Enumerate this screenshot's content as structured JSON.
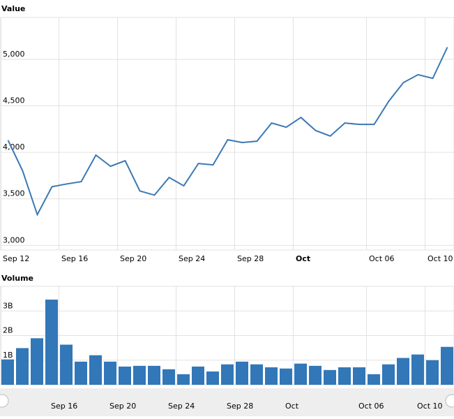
{
  "chart_data": [
    {
      "type": "line",
      "title": "Value",
      "color": "#3a78b5",
      "grid": true,
      "categories": [
        "Sep 12",
        null,
        null,
        null,
        "Sep 16",
        null,
        null,
        null,
        "Sep 20",
        null,
        null,
        null,
        "Sep 24",
        null,
        null,
        null,
        "Sep 28",
        null,
        null,
        null,
        "Oct",
        null,
        null,
        null,
        null,
        "Oct 06",
        null,
        null,
        null,
        "Oct 10",
        null
      ],
      "values": [
        4130,
        3800,
        3330,
        3630,
        3660,
        3685,
        3970,
        3850,
        3910,
        3585,
        3540,
        3730,
        3640,
        3880,
        3865,
        4135,
        4105,
        4120,
        4315,
        4270,
        4375,
        4235,
        4175,
        4315,
        4300,
        4300,
        4550,
        4750,
        4835,
        4795,
        5130
      ],
      "ylim": [
        2950,
        5450
      ],
      "yticks": [
        {
          "value": 3000,
          "label": "3,000"
        },
        {
          "value": 3500,
          "label": "3,500"
        },
        {
          "value": 4000,
          "label": "4,000"
        },
        {
          "value": 4500,
          "label": "4,500"
        },
        {
          "value": 5000,
          "label": "5,000"
        }
      ]
    },
    {
      "type": "bar",
      "title": "Volume",
      "color": "#3277b8",
      "grid": true,
      "values": [
        1030000000,
        1490000000,
        1890000000,
        3460000000,
        1630000000,
        940000000,
        1200000000,
        940000000,
        740000000,
        770000000,
        770000000,
        630000000,
        430000000,
        740000000,
        540000000,
        830000000,
        940000000,
        830000000,
        710000000,
        660000000,
        860000000,
        770000000,
        600000000,
        710000000,
        710000000,
        430000000,
        830000000,
        1090000000,
        1230000000,
        1000000000,
        1540000000
      ],
      "ylim": [
        0,
        4000000000
      ],
      "yticks": [
        0,
        {
          "value": 1000000000,
          "label": "1B"
        },
        {
          "value": 2000000000,
          "label": "2B"
        },
        {
          "value": 3000000000,
          "label": "3B"
        }
      ]
    }
  ]
}
